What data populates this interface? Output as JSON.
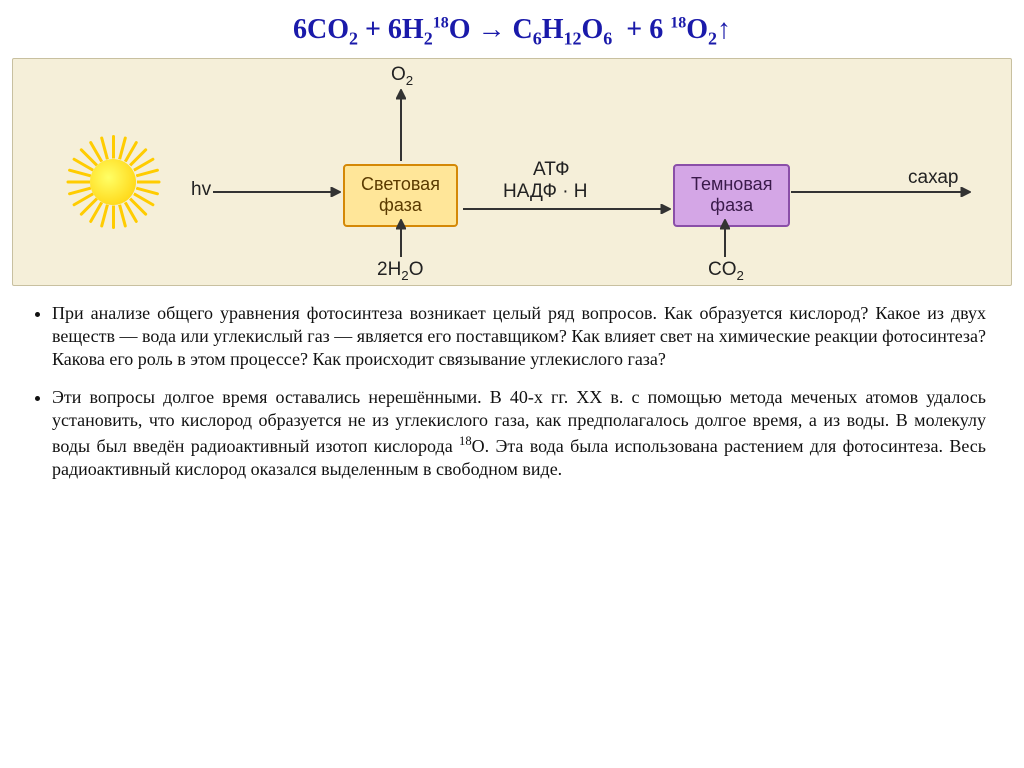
{
  "equation": {
    "html": "6CO<sub>2</sub> + 6H<sub>2</sub><sup>18</sup>O &rarr; C<sub>6</sub>H<sub>12</sub>O<sub>6</sub>&nbsp; + 6 <sup>18</sup>O<sub>2</sub>&uarr;",
    "color": "#1a1aaa",
    "fontsize": 28
  },
  "diagram": {
    "background": "#f5efd9",
    "sun_color_inner": "#ffff66",
    "sun_color_outer": "#ffcc00",
    "hv_label": "hv",
    "light_box": {
      "line1": "Световая",
      "line2": "фаза",
      "bg": "#ffe699",
      "border": "#d48806"
    },
    "dark_box": {
      "line1": "Темновая",
      "line2": "фаза",
      "bg": "#d4a6e6",
      "border": "#8a4fa8"
    },
    "o2_label": "O",
    "o2_sub": "2",
    "h2o_label": "2H",
    "h2o_sub1": "2",
    "h2o_label2": "O",
    "atp_label": "АТФ",
    "nadph_label": "НАДФ · Н",
    "co2_label": "CO",
    "co2_sub": "2",
    "sugar_label": "сахар",
    "arrow_color": "#333333"
  },
  "body": {
    "para1": "При анализе общего уравнения фотосинтеза возникает целый ряд вопросов. Как образуется кислород? Какое из двух веществ — вода или углекислый газ — является его поставщиком? Как влияет свет на химические реакции фотосинтеза? Какова его роль в этом процессе? Как происходит связывание углекислого газа?",
    "para2_html": "Эти вопросы долгое время оставались нерешёнными. В 40-х гг. XX в. с помощью метода меченых атомов удалось установить, что кислород образуется не из углекислого газа, как предполагалось долгое время, а из воды. В молекулу воды был введён радиоактивный изотоп кислорода <sup>18</sup>O. Эта вода была использована растением для фотосинтеза. Весь радиоактивный кислород оказался выделенным в свободном виде.",
    "fontsize": 18
  }
}
